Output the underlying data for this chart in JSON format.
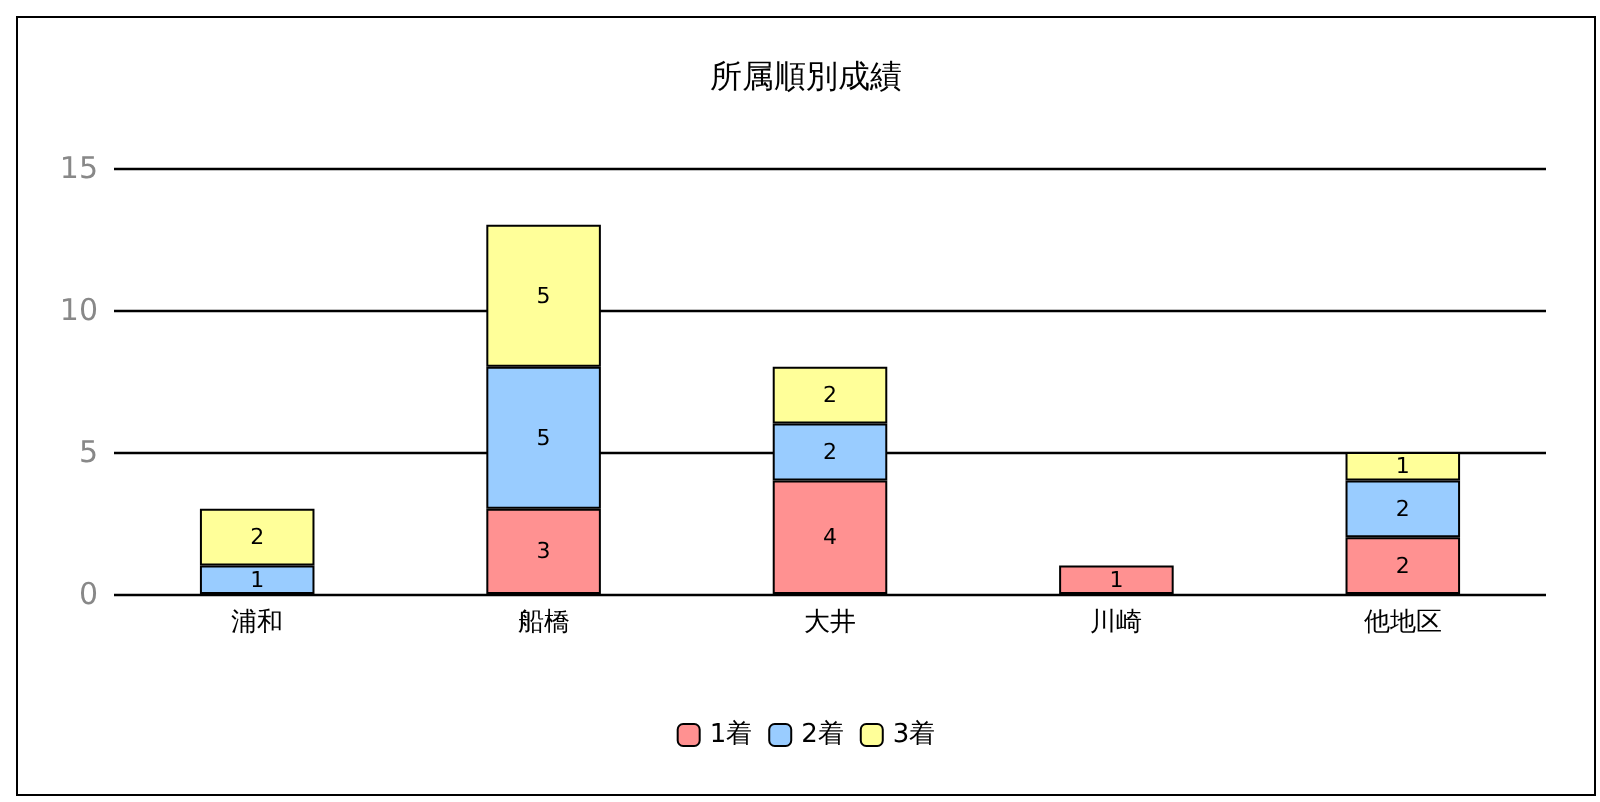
{
  "chart_data": {
    "type": "bar",
    "title": "所属順別成績",
    "categories": [
      "浦和",
      "船橋",
      "大井",
      "川崎",
      "他地区"
    ],
    "stacked": true,
    "series": [
      {
        "name": "1着",
        "color": "#ff9191",
        "values": [
          null,
          3,
          4,
          1,
          2
        ]
      },
      {
        "name": "2着",
        "color": "#99ccff",
        "values": [
          1,
          5,
          2,
          null,
          2
        ]
      },
      {
        "name": "3着",
        "color": "#ffff99",
        "values": [
          2,
          5,
          2,
          null,
          1
        ]
      }
    ],
    "ylim": [
      0,
      15
    ],
    "yticks": [
      0,
      5,
      10,
      15
    ],
    "grid": "y",
    "legend": "bottom",
    "data_labels": true
  }
}
